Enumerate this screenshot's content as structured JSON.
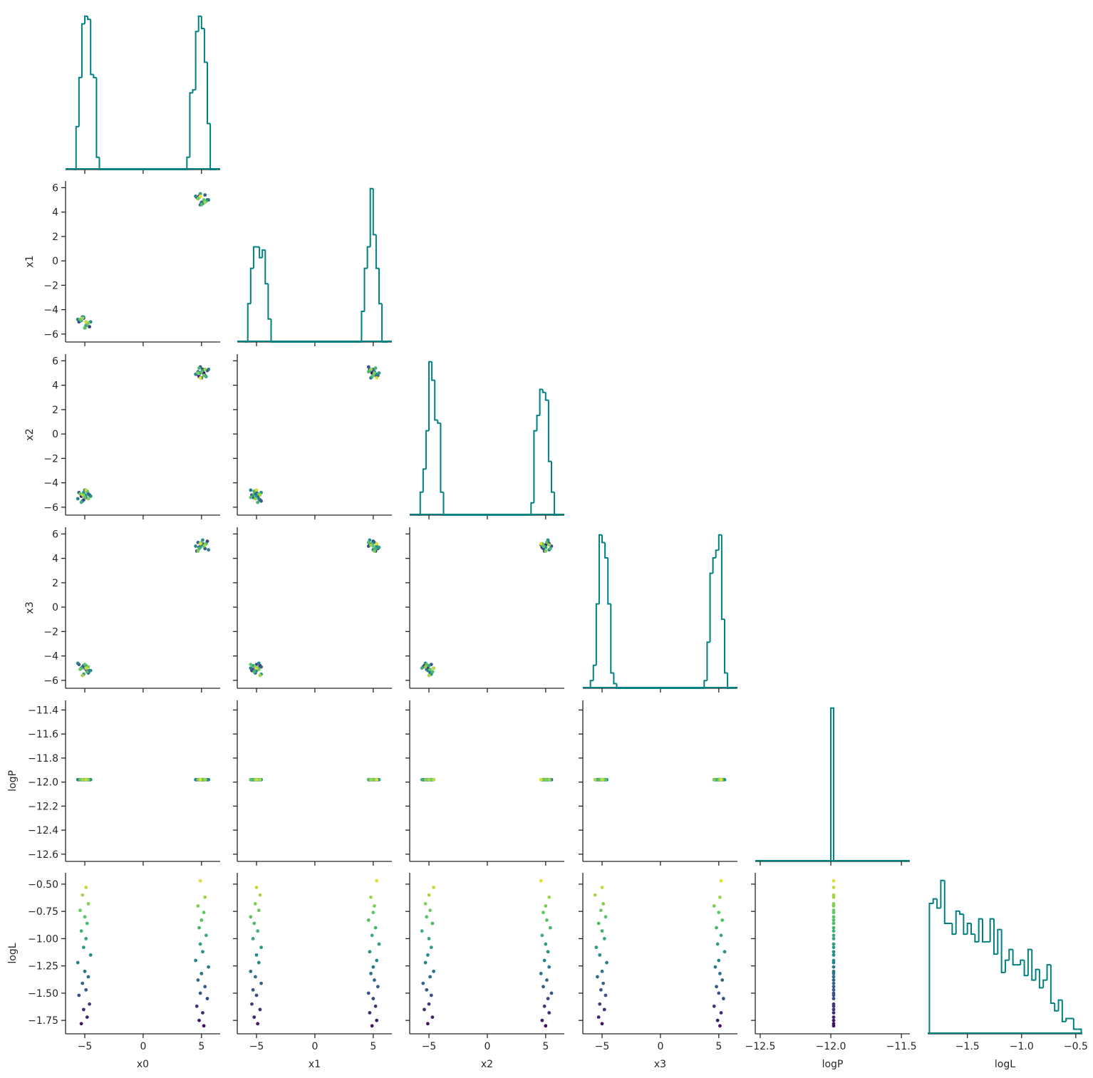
{
  "chart_data": {
    "type": "corner",
    "colormap": "viridis",
    "hist_color": "#008080",
    "params": [
      {
        "name": "x0",
        "xlim": [
          -6.65,
          6.6
        ],
        "ylim": [
          -6.65,
          6.55
        ],
        "xticks": [
          {
            "value": -5,
            "label": "−5"
          },
          0,
          5
        ],
        "yticks": [
          {
            "value": -6,
            "label": "−6"
          },
          {
            "value": -4,
            "label": "−4"
          },
          {
            "value": -2,
            "label": "−2"
          },
          0,
          2,
          4,
          6
        ],
        "samples": [
          -5.3,
          -4.8,
          -5.1,
          -4.6,
          -5.5,
          -4.9,
          -5.2,
          -4.7,
          -5.0,
          -5.6,
          -4.5,
          -5.1,
          -4.9,
          -5.3,
          -4.8,
          -5.0,
          -5.4,
          -4.7,
          -5.2,
          -4.9,
          5.2,
          4.8,
          5.1,
          4.6,
          5.5,
          4.9,
          5.3,
          4.7,
          5.0,
          5.6,
          4.5,
          5.1,
          4.9,
          5.4,
          4.8,
          5.0,
          5.2,
          4.7,
          5.3,
          4.9
        ],
        "hist": {
          "ylim": [
            0,
            105
          ],
          "bins": [
            -6,
            -5.75,
            -5.5,
            -5.25,
            -5,
            -4.75,
            -4.5,
            -4.25,
            -4,
            -3.75,
            -3.5,
            -3.25,
            -3,
            -2.75,
            -2.5,
            -2.25,
            -2,
            -1.75,
            -1.5,
            -1.25,
            -1,
            -0.75,
            -0.5,
            -0.25,
            0,
            0.25,
            0.5,
            0.75,
            1,
            1.25,
            1.5,
            1.75,
            2,
            2.25,
            2.5,
            2.75,
            3,
            3.25,
            3.5,
            3.75,
            4,
            4.25,
            4.5,
            4.75,
            5,
            5.25,
            5.5,
            5.75,
            6,
            6.25
          ],
          "counts": [
            0,
            28,
            60,
            95,
            100,
            98,
            62,
            60,
            8,
            0,
            0,
            0,
            0,
            0,
            0,
            0,
            0,
            0,
            0,
            0,
            0,
            0,
            0,
            0,
            0,
            0,
            0,
            0,
            0,
            0,
            0,
            0,
            0,
            0,
            0,
            0,
            0,
            0,
            0,
            8,
            50,
            52,
            90,
            100,
            92,
            70,
            30,
            0,
            0
          ]
        }
      },
      {
        "name": "x1",
        "xlim": [
          -6.65,
          6.6
        ],
        "ylim": [
          -6.65,
          6.55
        ],
        "xticks": [
          {
            "value": -5,
            "label": "−5"
          },
          0,
          5
        ],
        "yticks": [
          {
            "value": -6,
            "label": "−6"
          },
          {
            "value": -4,
            "label": "−4"
          },
          {
            "value": -2,
            "label": "−2"
          },
          0,
          2,
          4,
          6
        ],
        "samples": [
          -4.9,
          -5.2,
          -4.7,
          -5.4,
          -5.0,
          -5.3,
          -4.6,
          -5.1,
          -5.5,
          -4.8,
          -5.0,
          -4.6,
          -5.3,
          -4.9,
          -5.2,
          -5.5,
          -4.8,
          -5.1,
          -4.7,
          -5.0,
          4.9,
          5.3,
          4.7,
          5.2,
          5.0,
          4.6,
          5.4,
          5.1,
          4.8,
          5.0,
          5.3,
          4.7,
          5.5,
          4.9,
          5.2,
          4.6,
          5.0,
          5.1,
          4.8,
          5.3
        ],
        "hist": {
          "ylim": [
            0,
            105
          ],
          "bins": [
            -6,
            -5.75,
            -5.5,
            -5.25,
            -5,
            -4.75,
            -4.5,
            -4.25,
            -4,
            -3.75,
            -3.5,
            -3.25,
            -3,
            -2.75,
            -2.5,
            -2.25,
            -2,
            -1.75,
            -1.5,
            -1.25,
            -1,
            -0.75,
            -0.5,
            -0.25,
            0,
            0.25,
            0.5,
            0.75,
            1,
            1.25,
            1.5,
            1.75,
            2,
            2.25,
            2.5,
            2.75,
            3,
            3.25,
            3.5,
            3.75,
            4,
            4.25,
            4.5,
            4.75,
            5,
            5.25,
            5.5,
            5.75,
            6,
            6.25
          ],
          "counts": [
            0,
            25,
            48,
            62,
            62,
            55,
            60,
            38,
            15,
            0,
            0,
            0,
            0,
            0,
            0,
            0,
            0,
            0,
            0,
            0,
            0,
            0,
            0,
            0,
            0,
            0,
            0,
            0,
            0,
            0,
            0,
            0,
            0,
            0,
            0,
            0,
            0,
            0,
            0,
            0,
            20,
            48,
            62,
            100,
            70,
            48,
            25,
            0,
            0
          ]
        }
      },
      {
        "name": "x2",
        "xlim": [
          -6.65,
          6.6
        ],
        "ylim": [
          -6.65,
          6.55
        ],
        "xticks": [
          {
            "value": -5,
            "label": "−5"
          },
          0,
          5
        ],
        "yticks": [
          {
            "value": -6,
            "label": "−6"
          },
          {
            "value": -4,
            "label": "−4"
          },
          {
            "value": -2,
            "label": "−2"
          },
          0,
          2,
          4,
          6
        ],
        "samples": [
          -5.1,
          -4.7,
          -5.4,
          -5.0,
          -4.8,
          -5.2,
          -5.5,
          -4.9,
          -4.6,
          -5.3,
          -5.1,
          -4.8,
          -5.0,
          -5.6,
          -4.7,
          -5.2,
          -4.9,
          -5.3,
          -5.0,
          -4.6,
          5.0,
          4.7,
          5.3,
          4.9,
          5.2,
          5.5,
          4.8,
          5.1,
          4.6,
          5.3,
          4.9,
          5.2,
          5.0,
          4.7,
          5.4,
          5.1,
          4.8,
          5.0,
          5.3,
          4.6
        ],
        "hist": {
          "ylim": [
            0,
            105
          ],
          "bins": [
            -6,
            -5.75,
            -5.5,
            -5.25,
            -5,
            -4.75,
            -4.5,
            -4.25,
            -4,
            -3.75,
            -3.5,
            -3.25,
            -3,
            -2.75,
            -2.5,
            -2.25,
            -2,
            -1.75,
            -1.5,
            -1.25,
            -1,
            -0.75,
            -0.5,
            -0.25,
            0,
            0.25,
            0.5,
            0.75,
            1,
            1.25,
            1.5,
            1.75,
            2,
            2.25,
            2.5,
            2.75,
            3,
            3.25,
            3.5,
            3.75,
            4,
            4.25,
            4.5,
            4.75,
            5,
            5.25,
            5.5,
            5.75,
            6,
            6.25
          ],
          "counts": [
            0,
            15,
            30,
            55,
            100,
            88,
            62,
            60,
            15,
            0,
            0,
            0,
            0,
            0,
            0,
            0,
            0,
            0,
            0,
            0,
            0,
            0,
            0,
            0,
            0,
            0,
            0,
            0,
            0,
            0,
            0,
            0,
            0,
            0,
            0,
            0,
            0,
            0,
            0,
            8,
            55,
            65,
            82,
            80,
            75,
            35,
            15,
            0,
            0
          ]
        }
      },
      {
        "name": "x3",
        "xlim": [
          -6.65,
          6.6
        ],
        "ylim": [
          -6.65,
          6.55
        ],
        "xticks": [
          {
            "value": -5,
            "label": "−5"
          },
          0,
          5
        ],
        "yticks": [
          {
            "value": -6,
            "label": "−6"
          },
          {
            "value": -4,
            "label": "−4"
          },
          {
            "value": -2,
            "label": "−2"
          },
          0,
          2,
          4,
          6
        ],
        "samples": [
          -5.0,
          -5.3,
          -4.8,
          -5.2,
          -4.7,
          -5.1,
          -4.9,
          -5.4,
          -5.0,
          -4.6,
          -5.2,
          -5.5,
          -4.8,
          -5.0,
          -5.3,
          -4.7,
          -5.1,
          -4.9,
          -5.6,
          -5.0,
          5.1,
          4.9,
          5.2,
          4.6,
          5.4,
          5.0,
          4.8,
          5.3,
          5.1,
          4.7,
          5.0,
          5.5,
          4.9,
          5.2,
          4.8,
          5.3,
          5.0,
          4.6,
          5.1,
          5.2
        ],
        "hist": {
          "ylim": [
            0,
            105
          ],
          "bins": [
            -6,
            -5.75,
            -5.5,
            -5.25,
            -5,
            -4.75,
            -4.5,
            -4.25,
            -4,
            -3.75,
            -3.5,
            -3.25,
            -3,
            -2.75,
            -2.5,
            -2.25,
            -2,
            -1.75,
            -1.5,
            -1.25,
            -1,
            -0.75,
            -0.5,
            -0.25,
            0,
            0.25,
            0.5,
            0.75,
            1,
            1.25,
            1.5,
            1.75,
            2,
            2.25,
            2.5,
            2.75,
            3,
            3.25,
            3.5,
            3.75,
            4,
            4.25,
            4.5,
            4.75,
            5,
            5.25,
            5.5,
            5.75,
            6,
            6.25
          ],
          "counts": [
            5,
            15,
            55,
            100,
            95,
            85,
            55,
            10,
            3,
            0,
            0,
            0,
            0,
            0,
            0,
            0,
            0,
            0,
            0,
            0,
            0,
            0,
            0,
            0,
            0,
            0,
            0,
            0,
            0,
            0,
            0,
            0,
            0,
            0,
            0,
            0,
            0,
            0,
            0,
            5,
            30,
            75,
            85,
            90,
            100,
            45,
            10,
            0,
            0
          ]
        }
      },
      {
        "name": "logP",
        "xlim": [
          -12.535,
          -11.44
        ],
        "ylim": [
          -12.66,
          -11.32
        ],
        "xticks": [
          {
            "value": -12.5,
            "label": "−12.5"
          },
          {
            "value": -12.0,
            "label": "−12.0"
          },
          {
            "value": -11.5,
            "label": "−11.5"
          }
        ],
        "yticks": [
          {
            "value": -12.6,
            "label": "−12.6"
          },
          {
            "value": -12.4,
            "label": "−12.4"
          },
          {
            "value": -12.2,
            "label": "−12.2"
          },
          {
            "value": -12.0,
            "label": "−12.0"
          },
          {
            "value": -11.8,
            "label": "−11.8"
          },
          {
            "value": -11.6,
            "label": "−11.6"
          },
          {
            "value": -11.4,
            "label": "−11.4"
          }
        ],
        "samples": [
          -11.98,
          -11.98,
          -11.98,
          -11.98,
          -11.98,
          -11.98,
          -11.98,
          -11.98,
          -11.98,
          -11.98,
          -11.98,
          -11.98,
          -11.98,
          -11.98,
          -11.98,
          -11.98,
          -11.98,
          -11.98,
          -11.98,
          -11.98,
          -11.98,
          -11.98,
          -11.98,
          -11.98,
          -11.98,
          -11.98,
          -11.98,
          -11.98,
          -11.98,
          -11.98,
          -11.98,
          -11.98,
          -11.98,
          -11.98,
          -11.98,
          -11.98,
          -11.98,
          -11.98,
          -11.98,
          -11.98
        ],
        "hist": {
          "ylim": [
            0,
            105
          ],
          "bins": [
            -12.0,
            -11.98
          ],
          "counts": [
            100
          ]
        }
      },
      {
        "name": "logL",
        "xlim": [
          -1.866,
          -0.44
        ],
        "ylim": [
          -1.873,
          -0.396
        ],
        "xticks": [
          {
            "value": -1.5,
            "label": "−1.5"
          },
          {
            "value": -1.0,
            "label": "−1.0"
          },
          {
            "value": -0.5,
            "label": "−0.5"
          }
        ],
        "yticks": [
          {
            "value": -1.75,
            "label": "−1.75"
          },
          {
            "value": -1.5,
            "label": "−1.50"
          },
          {
            "value": -1.25,
            "label": "−1.25"
          },
          {
            "value": -1.0,
            "label": "−1.00"
          },
          {
            "value": -0.75,
            "label": "−0.75"
          },
          {
            "value": -0.5,
            "label": "−0.50"
          }
        ],
        "samples": [
          -1.78,
          -1.72,
          -1.65,
          -1.6,
          -1.52,
          -1.47,
          -1.41,
          -1.35,
          -1.3,
          -1.22,
          -1.15,
          -1.08,
          -1.0,
          -0.93,
          -0.86,
          -0.8,
          -0.74,
          -0.68,
          -0.6,
          -0.53,
          -1.8,
          -1.75,
          -1.68,
          -1.62,
          -1.55,
          -1.5,
          -1.44,
          -1.38,
          -1.32,
          -1.26,
          -1.2,
          -1.12,
          -1.05,
          -0.97,
          -0.9,
          -0.83,
          -0.76,
          -0.7,
          -0.62,
          -0.47
        ],
        "hist": {
          "ylim": [
            0,
            105
          ],
          "bins": [
            -1.85,
            -1.815,
            -1.78,
            -1.745,
            -1.71,
            -1.675,
            -1.64,
            -1.605,
            -1.57,
            -1.535,
            -1.5,
            -1.465,
            -1.43,
            -1.395,
            -1.36,
            -1.325,
            -1.29,
            -1.255,
            -1.22,
            -1.185,
            -1.15,
            -1.115,
            -1.08,
            -1.045,
            -1.01,
            -0.975,
            -0.94,
            -0.905,
            -0.87,
            -0.835,
            -0.8,
            -0.765,
            -0.73,
            -0.695,
            -0.66,
            -0.625,
            -0.59,
            -0.555,
            -0.52,
            -0.485,
            -0.45
          ],
          "counts": [
            85,
            88,
            82,
            100,
            72,
            72,
            65,
            80,
            78,
            65,
            72,
            65,
            60,
            75,
            60,
            60,
            75,
            52,
            68,
            40,
            48,
            55,
            45,
            45,
            48,
            38,
            55,
            35,
            42,
            30,
            35,
            45,
            20,
            15,
            22,
            8,
            10,
            10,
            3,
            3
          ]
        }
      }
    ]
  }
}
